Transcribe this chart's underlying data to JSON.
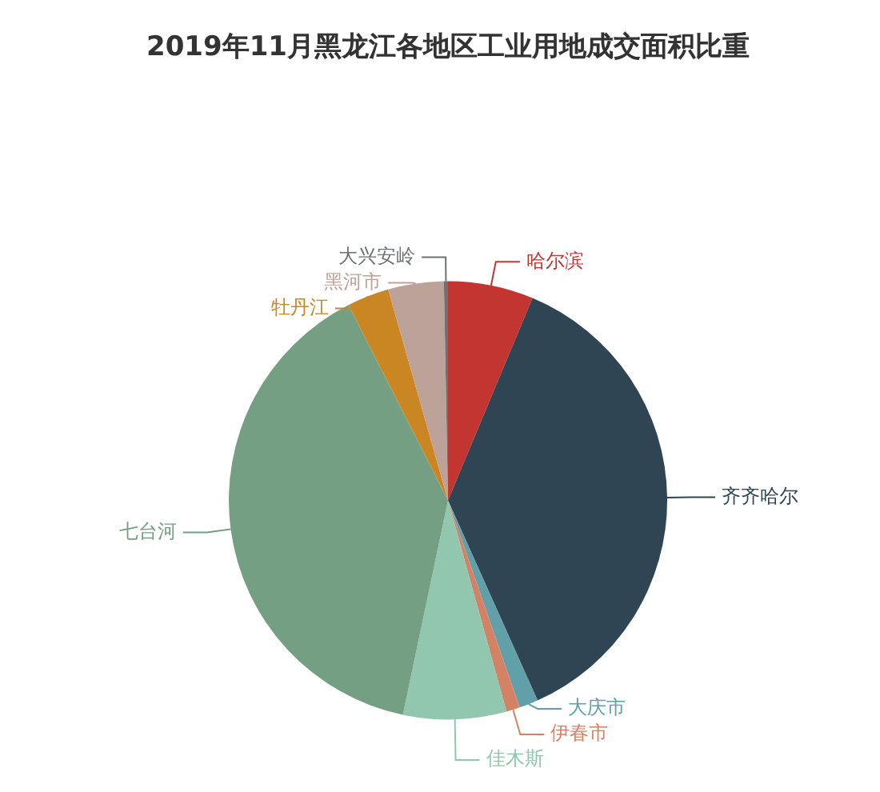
{
  "chart_data": {
    "type": "pie",
    "title": "2019年11月黑龙江各地区工业用地成交面积比重",
    "categories": [
      "哈尔滨",
      "齐齐哈尔",
      "大庆市",
      "伊春市",
      "佳木斯",
      "七台河",
      "牡丹江",
      "黑河市",
      "大兴安岭"
    ],
    "values": [
      6.3,
      37,
      1.4,
      1,
      7.6,
      39.2,
      3.1,
      4.1,
      0.3
    ],
    "colors": [
      "#c23531",
      "#2f4554",
      "#61a0a8",
      "#d48265",
      "#91c7ae",
      "#749f83",
      "#ca8622",
      "#bda29a",
      "#6e7074"
    ],
    "legend": false
  }
}
